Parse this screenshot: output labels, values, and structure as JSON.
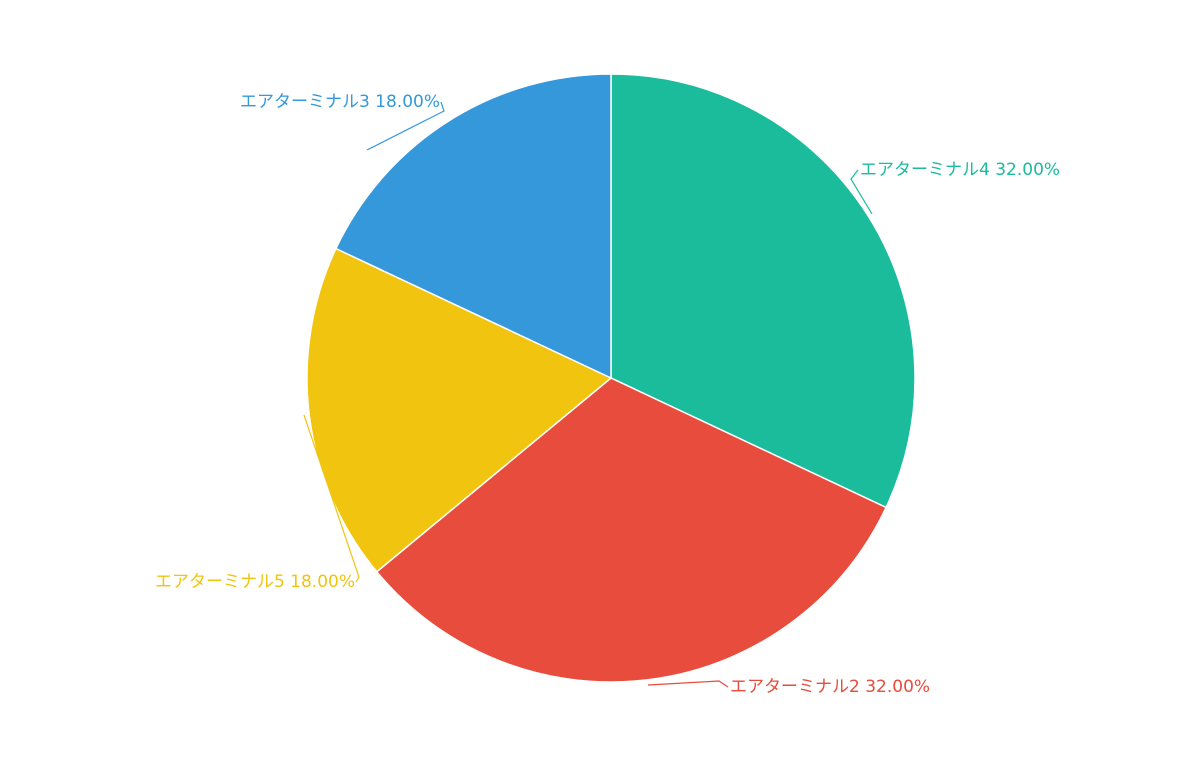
{
  "chart_data": {
    "type": "pie",
    "title": "",
    "slices": [
      {
        "name": "エアターミナル4",
        "value": 32.0,
        "label": "エアターミナル4 32.00%",
        "color": "#1abc9c"
      },
      {
        "name": "エアターミナル2",
        "value": 32.0,
        "label": "エアターミナル2 32.00%",
        "color": "#e74c3c"
      },
      {
        "name": "エアターミナル5",
        "value": 18.0,
        "label": "エアターミナル5 18.00%",
        "color": "#f1c40f"
      },
      {
        "name": "エアターミナル3",
        "value": 18.0,
        "label": "エアターミナル3 18.00%",
        "color": "#3498db"
      }
    ],
    "start": "12 o'clock",
    "direction": "clockwise",
    "legend": "none"
  }
}
